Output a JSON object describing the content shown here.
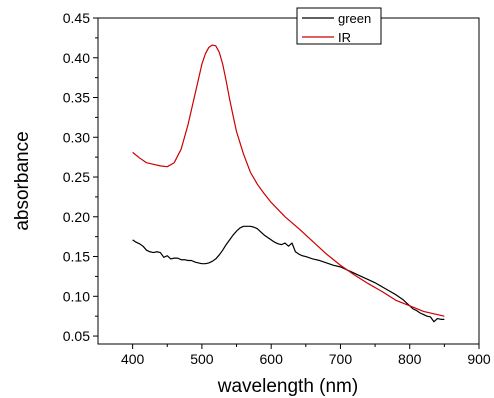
{
  "chart_data": {
    "type": "line",
    "xlabel": "wavelength (nm)",
    "ylabel": "absorbance",
    "xlim": [
      350,
      900
    ],
    "ylim": [
      0.04,
      0.45
    ],
    "x_ticks": [
      400,
      500,
      600,
      700,
      800,
      900
    ],
    "y_ticks": [
      0.05,
      0.1,
      0.15,
      0.2,
      0.25,
      0.3,
      0.35,
      0.4,
      0.45
    ],
    "x_tick_labels": [
      "400",
      "500",
      "600",
      "700",
      "800",
      "900"
    ],
    "y_tick_labels": [
      "0.05",
      "0.10",
      "0.15",
      "0.20",
      "0.25",
      "0.30",
      "0.35",
      "0.40",
      "0.45"
    ],
    "legend_position": "top-right",
    "grid": false,
    "series": [
      {
        "name": "green",
        "color": "#000000",
        "x": [
          400,
          405,
          410,
          415,
          420,
          425,
          430,
          435,
          440,
          445,
          450,
          455,
          460,
          465,
          470,
          475,
          480,
          485,
          490,
          495,
          500,
          505,
          510,
          515,
          520,
          525,
          530,
          535,
          540,
          545,
          550,
          555,
          560,
          565,
          570,
          575,
          580,
          585,
          590,
          595,
          600,
          605,
          610,
          615,
          620,
          625,
          630,
          635,
          640,
          645,
          650,
          660,
          670,
          680,
          690,
          700,
          710,
          720,
          730,
          740,
          750,
          760,
          770,
          780,
          785,
          790,
          795,
          800,
          805,
          810,
          815,
          820,
          825,
          830,
          835,
          840,
          845,
          850
        ],
        "y": [
          0.171,
          0.168,
          0.166,
          0.163,
          0.158,
          0.156,
          0.155,
          0.156,
          0.155,
          0.149,
          0.151,
          0.147,
          0.148,
          0.148,
          0.146,
          0.146,
          0.145,
          0.145,
          0.143,
          0.142,
          0.141,
          0.141,
          0.142,
          0.144,
          0.147,
          0.152,
          0.158,
          0.165,
          0.171,
          0.177,
          0.182,
          0.186,
          0.188,
          0.188,
          0.188,
          0.187,
          0.185,
          0.181,
          0.177,
          0.174,
          0.171,
          0.168,
          0.166,
          0.165,
          0.167,
          0.163,
          0.167,
          0.156,
          0.153,
          0.151,
          0.15,
          0.147,
          0.145,
          0.142,
          0.139,
          0.137,
          0.133,
          0.129,
          0.125,
          0.121,
          0.117,
          0.112,
          0.107,
          0.102,
          0.099,
          0.096,
          0.092,
          0.088,
          0.084,
          0.082,
          0.079,
          0.077,
          0.075,
          0.074,
          0.068,
          0.072,
          0.071,
          0.071
        ]
      },
      {
        "name": "IR",
        "color": "#cc0000",
        "x": [
          400,
          410,
          420,
          430,
          440,
          450,
          460,
          470,
          480,
          490,
          500,
          505,
          510,
          515,
          520,
          525,
          530,
          535,
          540,
          545,
          550,
          560,
          570,
          580,
          590,
          600,
          620,
          640,
          660,
          680,
          700,
          720,
          740,
          760,
          780,
          800,
          820,
          850
        ],
        "y": [
          0.281,
          0.274,
          0.268,
          0.266,
          0.264,
          0.263,
          0.268,
          0.285,
          0.316,
          0.354,
          0.392,
          0.405,
          0.413,
          0.416,
          0.415,
          0.407,
          0.392,
          0.371,
          0.348,
          0.327,
          0.307,
          0.279,
          0.256,
          0.241,
          0.229,
          0.218,
          0.2,
          0.185,
          0.169,
          0.153,
          0.139,
          0.127,
          0.116,
          0.106,
          0.095,
          0.088,
          0.081,
          0.075
        ]
      }
    ]
  }
}
